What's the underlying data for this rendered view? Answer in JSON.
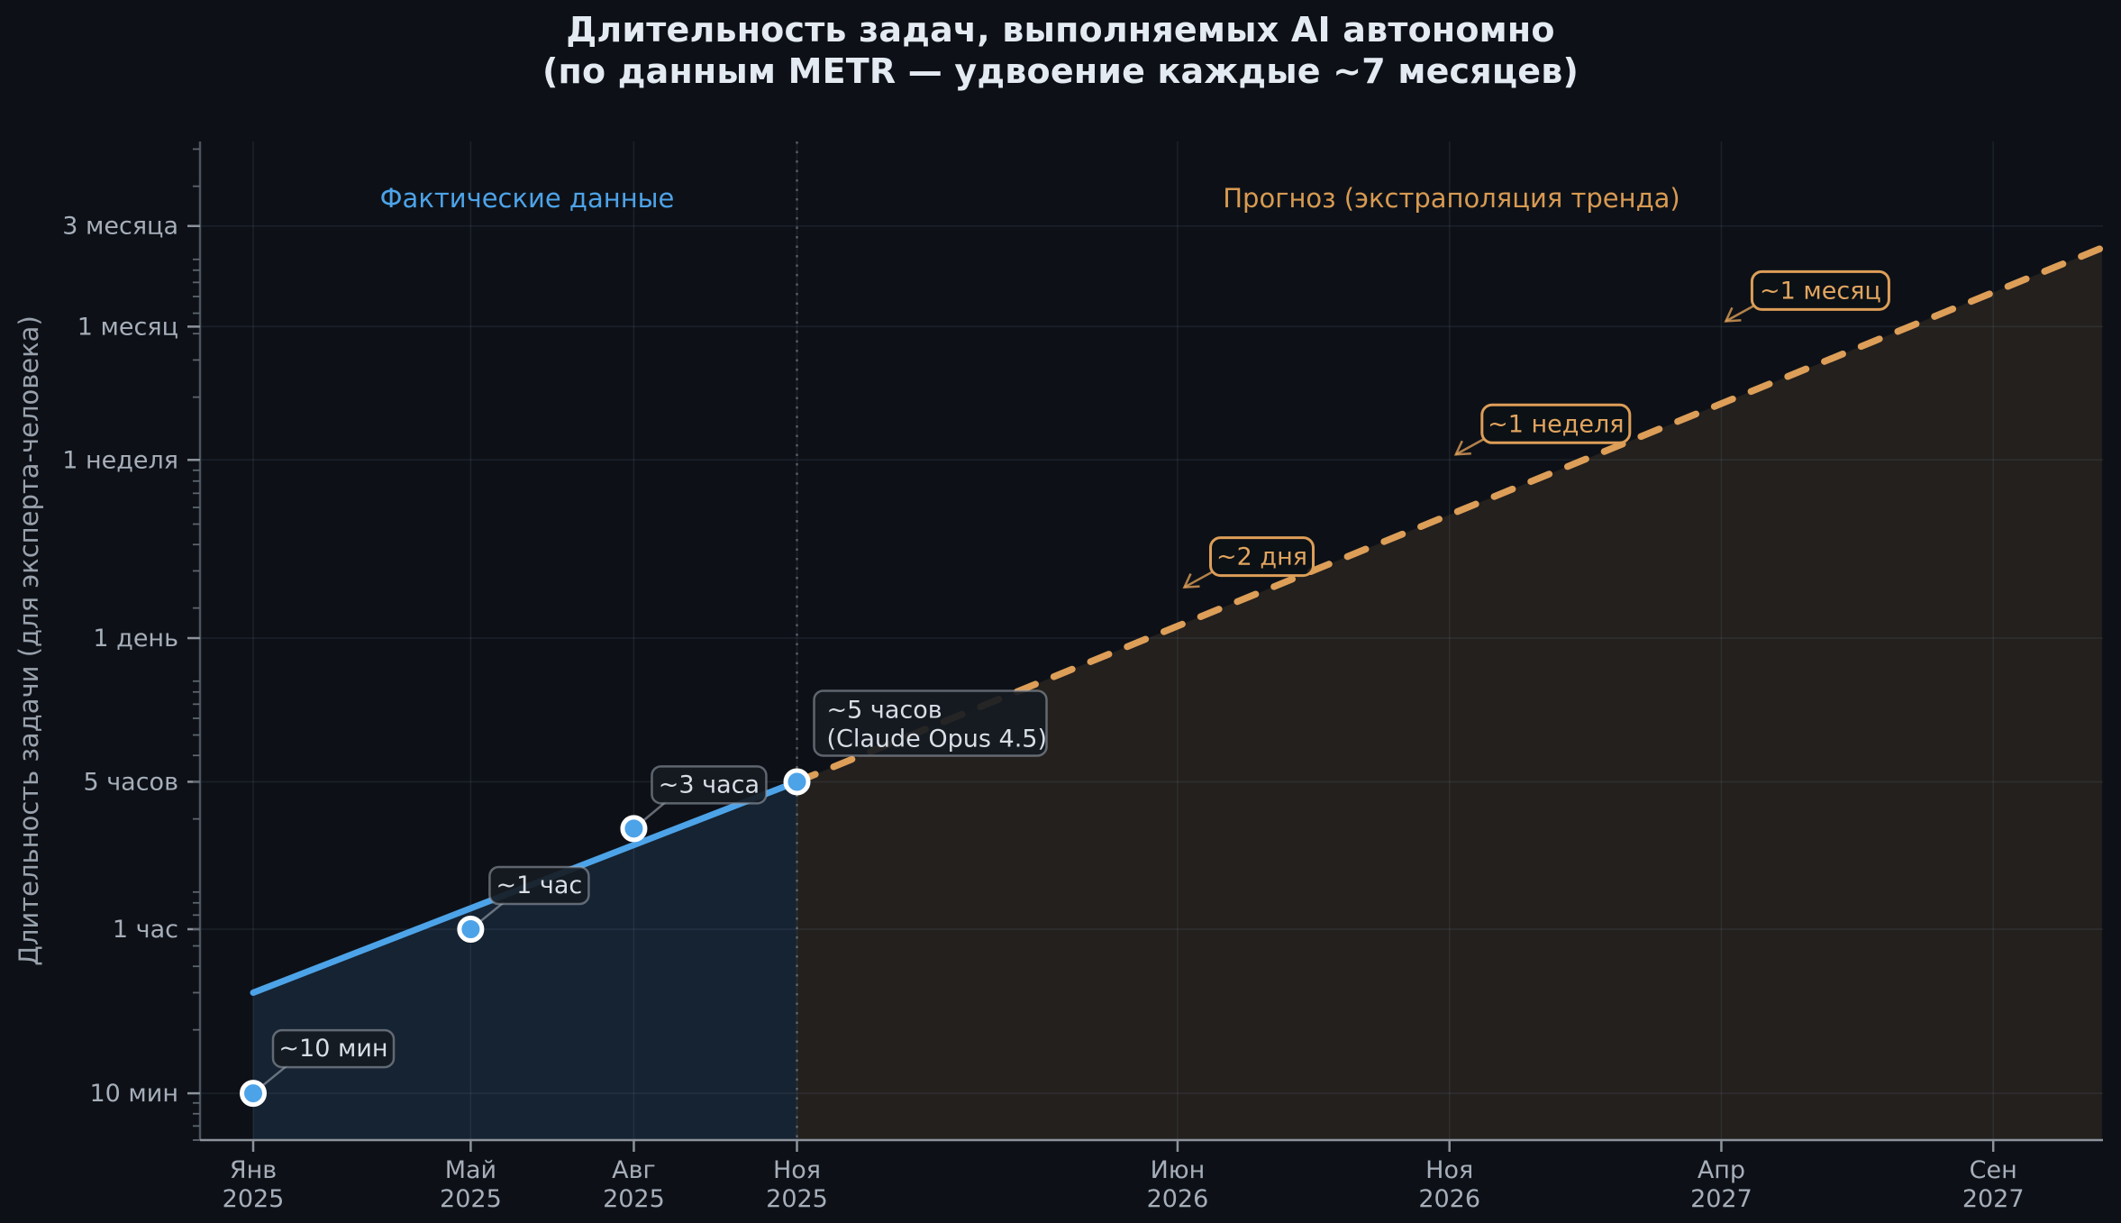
{
  "title": {
    "line1": "Длительность задач, выполняемых AI автономно",
    "line2": "(по данным METR — удвоение каждые ~7 месяцев)"
  },
  "legend": {
    "actual": "Фактические данные",
    "forecast": "Прогноз (экстраполяция тренда)"
  },
  "colors": {
    "background": "#0d1117",
    "actual_blue": "#4da3e8",
    "forecast_orange": "#dd9e58",
    "title_text": "#e4eaf1",
    "tick_text": "#a6aeb9",
    "axis_label_text": "#99a1ac",
    "annotation_text": "#d8dee6"
  },
  "chart_data": {
    "type": "line",
    "title": "Длительность задач, выполняемых AI автономно (по данным METR — удвоение каждые ~7 месяцев)",
    "ylabel": "Длительность задачи (для эксперта-человека)",
    "y_scale": "log",
    "x_unit": "months since Jan 2025",
    "grid": true,
    "x_ticks": [
      {
        "month": 0,
        "line1": "Янв",
        "line2": "2025"
      },
      {
        "month": 4,
        "line1": "Май",
        "line2": "2025"
      },
      {
        "month": 7,
        "line1": "Авг",
        "line2": "2025"
      },
      {
        "month": 10,
        "line1": "Ноя",
        "line2": "2025"
      },
      {
        "month": 17,
        "line1": "Июн",
        "line2": "2026"
      },
      {
        "month": 22,
        "line1": "Ноя",
        "line2": "2026"
      },
      {
        "month": 27,
        "line1": "Апр",
        "line2": "2027"
      },
      {
        "month": 32,
        "line1": "Сен",
        "line2": "2027"
      }
    ],
    "y_ticks": [
      {
        "label": "10 мин",
        "minutes": 10
      },
      {
        "label": "1 час",
        "minutes": 60
      },
      {
        "label": "5 часов",
        "minutes": 300
      },
      {
        "label": "1 день",
        "minutes": 1440
      },
      {
        "label": "1 неделя",
        "minutes": 10080
      },
      {
        "label": "1 месяц",
        "minutes": 43200
      },
      {
        "label": "3 месяца",
        "minutes": 129600
      }
    ],
    "actual_points": [
      {
        "month": 0,
        "minutes": 10,
        "label": "~10 мин"
      },
      {
        "month": 4,
        "minutes": 60,
        "label": "~1 час"
      },
      {
        "month": 7,
        "minutes": 180,
        "label": "~3 часа"
      },
      {
        "month": 10,
        "minutes": 300,
        "label": "~5 часов",
        "label2": "(Claude Opus 4.5)"
      }
    ],
    "actual_trend": {
      "start_month": 0,
      "start_minutes": 30,
      "end_month": 10,
      "end_minutes": 300
    },
    "forecast_trend": {
      "start_month": 10,
      "start_minutes": 300,
      "end_month": 34,
      "end_minutes": 102000
    },
    "forecast_annotations": [
      {
        "label": "~2 дня",
        "minutes": 2880
      },
      {
        "label": "~1 неделя",
        "minutes": 10080
      },
      {
        "label": "~1 месяц",
        "minutes": 43200
      }
    ],
    "divider_month": 10
  }
}
